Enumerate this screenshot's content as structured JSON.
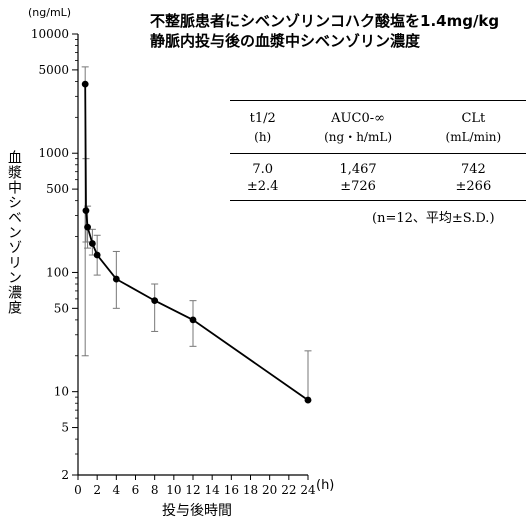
{
  "title_line1": "不整脈患者にシベンゾリンコハク酸塩を1.4mg/kg",
  "title_line2": "静脈内投与後の血漿中シベンゾリン濃度",
  "y_units": "(ng/mL)",
  "ylabel": "血漿中シベンゾリン濃度",
  "xlabel": "投与後時間",
  "x_units": "(h)",
  "pk_table": {
    "headers": [
      {
        "name": "t1/2",
        "unit": "(h)"
      },
      {
        "name": "AUC0-∞",
        "unit": "(ng・h/mL)"
      },
      {
        "name": "CLt",
        "unit": "(mL/min)"
      }
    ],
    "means": [
      "7.0",
      "1,467",
      "742"
    ],
    "sds": [
      "±2.4",
      "±726",
      "±266"
    ]
  },
  "note": "(n=12、平均±S.D.)",
  "chart_data": {
    "type": "line",
    "yscale": "log",
    "xlim": [
      0,
      24
    ],
    "ylim": [
      2,
      10000
    ],
    "x_ticks": [
      0,
      2,
      4,
      6,
      8,
      10,
      12,
      14,
      16,
      18,
      20,
      22,
      24
    ],
    "y_ticks": [
      {
        "value": 10000,
        "label": "10000"
      },
      {
        "value": 5000,
        "label": "5000"
      },
      {
        "value": 1000,
        "label": "1000"
      },
      {
        "value": 500,
        "label": "500"
      },
      {
        "value": 100,
        "label": "100"
      },
      {
        "value": 50,
        "label": "50"
      },
      {
        "value": 10,
        "label": "10"
      },
      {
        "value": 5,
        "label": "5"
      },
      {
        "value": 2,
        "label": "2"
      }
    ],
    "points": [
      {
        "x": 0.75,
        "y": 3800,
        "upper": 5300,
        "lower": 20
      },
      {
        "x": 0.83,
        "y": 330,
        "upper": 900,
        "lower": 180
      },
      {
        "x": 1.0,
        "y": 240,
        "upper": 360,
        "lower": 160
      },
      {
        "x": 1.5,
        "y": 175,
        "upper": 230,
        "lower": 140
      },
      {
        "x": 2.0,
        "y": 140,
        "upper": 205,
        "lower": 95
      },
      {
        "x": 4.0,
        "y": 88,
        "upper": 150,
        "lower": 50
      },
      {
        "x": 8.0,
        "y": 58,
        "upper": 80,
        "lower": 32
      },
      {
        "x": 12.0,
        "y": 40,
        "upper": 58,
        "lower": 24
      },
      {
        "x": 24.0,
        "y": 8.5,
        "upper": 22,
        "lower": 8.5
      }
    ],
    "grid": false
  }
}
